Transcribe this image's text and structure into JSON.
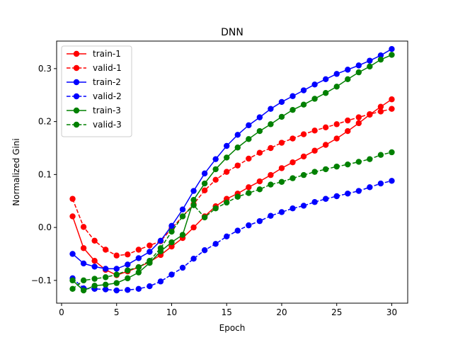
{
  "chart_data": {
    "type": "line",
    "title": "DNN",
    "xlabel": "Epoch",
    "ylabel": "Normalized Gini",
    "xlim": [
      -0.45,
      31.45
    ],
    "ylim": [
      -0.143,
      0.352
    ],
    "xticks": [
      0,
      5,
      10,
      15,
      20,
      25,
      30
    ],
    "yticks": [
      -0.1,
      0.0,
      0.1,
      0.2,
      0.3
    ],
    "ytick_labels": [
      "−0.1",
      "0.0",
      "0.1",
      "0.2",
      "0.3"
    ],
    "grid": false,
    "legend_position": "top-left",
    "x": [
      1,
      2,
      3,
      4,
      5,
      6,
      7,
      8,
      9,
      10,
      11,
      12,
      13,
      14,
      15,
      16,
      17,
      18,
      19,
      20,
      21,
      22,
      23,
      24,
      25,
      26,
      27,
      28,
      29,
      30
    ],
    "series": [
      {
        "name": "train-1",
        "color": "#ff0000",
        "dash": "solid",
        "values": [
          0.021,
          -0.039,
          -0.063,
          -0.08,
          -0.09,
          -0.083,
          -0.075,
          -0.065,
          -0.052,
          -0.036,
          -0.02,
          0.0,
          0.021,
          0.04,
          0.054,
          0.064,
          0.076,
          0.087,
          0.099,
          0.112,
          0.123,
          0.134,
          0.145,
          0.156,
          0.168,
          0.182,
          0.197,
          0.213,
          0.228,
          0.242
        ]
      },
      {
        "name": "valid-1",
        "color": "#ff0000",
        "dash": "dashed",
        "values": [
          0.054,
          0.001,
          -0.025,
          -0.042,
          -0.053,
          -0.051,
          -0.042,
          -0.034,
          -0.026,
          -0.002,
          0.021,
          0.044,
          0.07,
          0.09,
          0.105,
          0.117,
          0.13,
          0.141,
          0.15,
          0.16,
          0.168,
          0.176,
          0.183,
          0.189,
          0.195,
          0.202,
          0.208,
          0.214,
          0.219,
          0.224
        ]
      },
      {
        "name": "train-2",
        "color": "#0000ff",
        "dash": "solid",
        "values": [
          -0.05,
          -0.068,
          -0.074,
          -0.078,
          -0.078,
          -0.07,
          -0.058,
          -0.046,
          -0.025,
          0.003,
          0.034,
          0.069,
          0.102,
          0.129,
          0.154,
          0.175,
          0.193,
          0.208,
          0.224,
          0.237,
          0.248,
          0.259,
          0.27,
          0.28,
          0.29,
          0.298,
          0.306,
          0.315,
          0.325,
          0.337
        ]
      },
      {
        "name": "valid-2",
        "color": "#0000ff",
        "dash": "dashed",
        "values": [
          -0.096,
          -0.115,
          -0.116,
          -0.117,
          -0.119,
          -0.118,
          -0.116,
          -0.111,
          -0.102,
          -0.089,
          -0.076,
          -0.059,
          -0.043,
          -0.031,
          -0.017,
          -0.006,
          0.004,
          0.012,
          0.022,
          0.029,
          0.036,
          0.041,
          0.048,
          0.054,
          0.059,
          0.064,
          0.069,
          0.076,
          0.083,
          0.088
        ]
      },
      {
        "name": "train-3",
        "color": "#008000",
        "dash": "solid",
        "values": [
          -0.1,
          -0.119,
          -0.11,
          -0.108,
          -0.105,
          -0.096,
          -0.085,
          -0.067,
          -0.045,
          -0.028,
          -0.014,
          0.052,
          0.083,
          0.11,
          0.132,
          0.151,
          0.167,
          0.182,
          0.195,
          0.209,
          0.222,
          0.232,
          0.243,
          0.254,
          0.266,
          0.28,
          0.293,
          0.304,
          0.317,
          0.326
        ]
      },
      {
        "name": "valid-3",
        "color": "#008000",
        "dash": "dashed",
        "values": [
          -0.116,
          -0.1,
          -0.097,
          -0.094,
          -0.089,
          -0.081,
          -0.075,
          -0.063,
          -0.039,
          -0.008,
          0.021,
          0.042,
          0.019,
          0.036,
          0.047,
          0.058,
          0.065,
          0.072,
          0.081,
          0.086,
          0.093,
          0.099,
          0.105,
          0.11,
          0.115,
          0.119,
          0.124,
          0.129,
          0.137,
          0.142
        ]
      }
    ]
  }
}
